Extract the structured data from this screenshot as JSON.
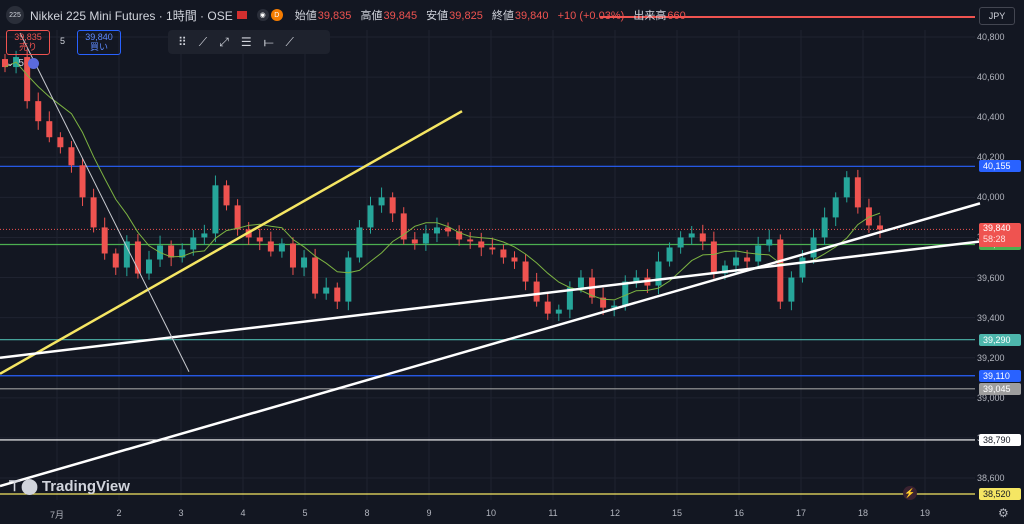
{
  "header": {
    "logo_text": "225",
    "title": "Nikkei 225 Mini Futures · 1時間 · OSE",
    "dot_label": "D",
    "ohlc": [
      {
        "key": "始値",
        "value": "39,835"
      },
      {
        "key": "高値",
        "value": "39,845"
      },
      {
        "key": "安値",
        "value": "39,825"
      },
      {
        "key": "終値",
        "value": "39,840"
      },
      {
        "key": "",
        "value": "+10 (+0.03%)"
      },
      {
        "key": "出来高",
        "value": "660"
      }
    ]
  },
  "trade": {
    "sell_price": "39,835",
    "sell_label": "売り",
    "qty": "5",
    "buy_price": "39,840",
    "buy_label": "買い"
  },
  "indicator": {
    "label": "5"
  },
  "currency": "JPY",
  "brand": "TradingView",
  "colors": {
    "background": "#131722",
    "up": "#26a69a",
    "down": "#ef5350",
    "yellow_trend": "#f5e663",
    "white_trend": "#ffffff",
    "blue_level": "#2962ff",
    "green_level": "#4caf50",
    "teal_level": "#4db6ac"
  },
  "chart_data": {
    "type": "candlestick",
    "y_ticks": [
      "40,800",
      "40,600",
      "40,400",
      "40,200",
      "40,000",
      "39,800",
      "39,600",
      "39,400",
      "39,200",
      "39,000",
      "38,800",
      "38,600"
    ],
    "ylim": [
      38500,
      40870
    ],
    "x_labels": [
      "7月",
      "2",
      "3",
      "4",
      "5",
      "8",
      "9",
      "10",
      "11",
      "12",
      "15",
      "16",
      "17",
      "18",
      "19"
    ],
    "grid": true,
    "horizontal_levels": [
      {
        "value": 40155,
        "label": "40,155",
        "color": "#2962ff"
      },
      {
        "value": 39765,
        "label": "39,765",
        "color": "#4caf50"
      },
      {
        "value": 39290,
        "label": "39,290",
        "color": "#4db6ac"
      },
      {
        "value": 39110,
        "label": "39,110",
        "color": "#2962ff"
      },
      {
        "value": 39045,
        "label": "39,045",
        "color": "#9e9e9e"
      },
      {
        "value": 38790,
        "label": "38,790",
        "color": "#ffffff"
      },
      {
        "value": 38520,
        "label": "38,520",
        "color": "#f5e663"
      }
    ],
    "current_price": {
      "value": 39840,
      "label": "39,840",
      "countdown": "58:28"
    },
    "trend_lines": [
      {
        "name": "yellow",
        "points": [
          [
            "7月",
            39120
          ],
          [
            "4",
            40430
          ]
        ]
      },
      {
        "name": "white-1",
        "points": [
          [
            "7月",
            39200
          ],
          [
            "19",
            39780
          ]
        ]
      },
      {
        "name": "white-2",
        "points": [
          [
            "7月",
            38560
          ],
          [
            "19",
            39970
          ]
        ]
      },
      {
        "name": "thin-white",
        "points": [
          [
            "7月",
            40820
          ],
          [
            "3",
            39130
          ]
        ]
      }
    ],
    "closes": [
      40650,
      40700,
      40480,
      40380,
      40300,
      40250,
      40160,
      40000,
      39850,
      39720,
      39650,
      39780,
      39620,
      39690,
      39760,
      39700,
      39740,
      39800,
      39820,
      40060,
      39960,
      39840,
      39800,
      39780,
      39730,
      39770,
      39650,
      39700,
      39520,
      39550,
      39480,
      39700,
      39850,
      39960,
      40000,
      39920,
      39790,
      39770,
      39820,
      39850,
      39830,
      39790,
      39780,
      39750,
      39740,
      39700,
      39680,
      39580,
      39480,
      39420,
      39440,
      39550,
      39600,
      39500,
      39450,
      39460,
      39580,
      39600,
      39560,
      39680,
      39750,
      39800,
      39820,
      39780,
      39620,
      39660,
      39700,
      39680,
      39760,
      39790,
      39480,
      39600,
      39700,
      39800,
      39900,
      40000,
      40100,
      39950,
      39860,
      39840
    ]
  }
}
